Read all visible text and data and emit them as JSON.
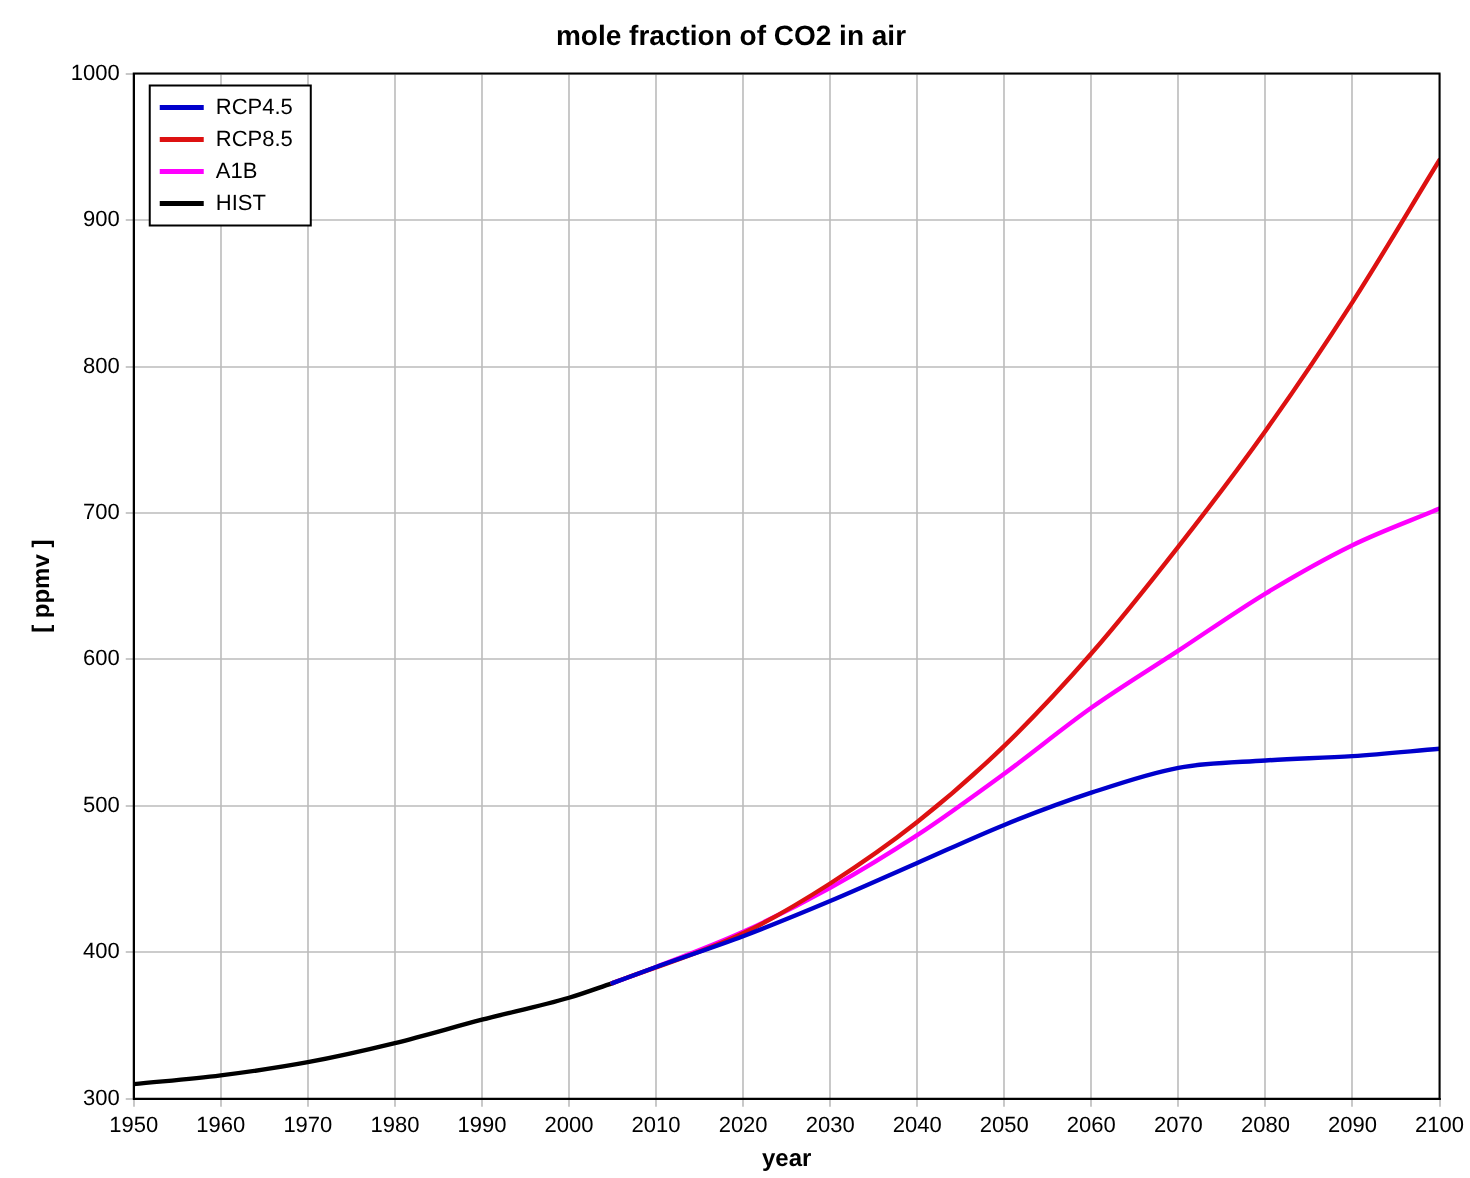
{
  "chart_data": {
    "type": "line",
    "title": "mole fraction of CO2 in air",
    "xlabel": "year",
    "ylabel": "[ ppmv ]",
    "xlim": [
      1950,
      2100
    ],
    "xticks": [
      1950,
      1960,
      1970,
      1980,
      1990,
      2000,
      2010,
      2020,
      2030,
      2040,
      2050,
      2060,
      2070,
      2080,
      2090,
      2100
    ],
    "ylim": [
      300,
      1000
    ],
    "yticks": [
      300,
      400,
      500,
      600,
      700,
      800,
      900,
      1000
    ],
    "grid": true,
    "legend": "top left",
    "marker": "none",
    "line_style": "solid",
    "series": [
      {
        "name": "RCP4.5",
        "color": "#0000cc",
        "x": [
          2005,
          2010,
          2020,
          2030,
          2040,
          2050,
          2060,
          2070,
          2080,
          2090,
          2100
        ],
        "values": [
          379,
          390,
          411,
          435,
          461,
          487,
          509,
          526,
          531,
          534,
          539
        ]
      },
      {
        "name": "RCP8.5",
        "color": "#dd1111",
        "x": [
          2005,
          2020,
          2030,
          2040,
          2050,
          2060,
          2070,
          2080,
          2090,
          2100
        ],
        "values": [
          379,
          413,
          447,
          489,
          541,
          604,
          677,
          756,
          844,
          941
        ]
      },
      {
        "name": "A1B",
        "color": "#ff00ff",
        "x": [
          2005,
          2010,
          2020,
          2030,
          2040,
          2050,
          2060,
          2070,
          2080,
          2090,
          2100
        ],
        "values": [
          379,
          390,
          414,
          444,
          480,
          522,
          567,
          606,
          645,
          678,
          703
        ]
      },
      {
        "name": "HIST",
        "color": "#000000",
        "x": [
          1950,
          1960,
          1970,
          1980,
          1990,
          2000,
          2005
        ],
        "values": [
          310,
          316,
          325,
          338,
          354,
          369,
          379
        ]
      }
    ]
  }
}
